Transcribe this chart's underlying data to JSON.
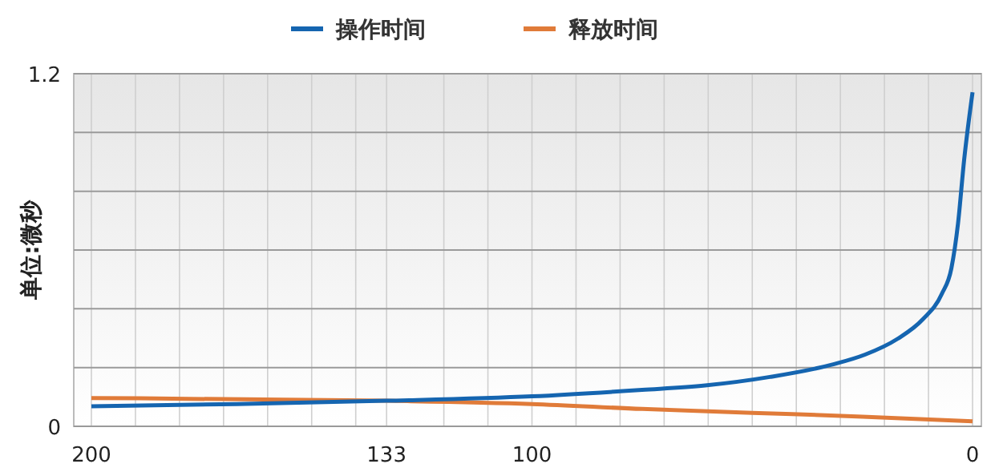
{
  "chart_data": {
    "type": "line",
    "ylabel": "单位:微秒",
    "legend": "top",
    "grid": true,
    "marker": "none",
    "line_style": "solid",
    "xlim": [
      204,
      -2
    ],
    "ylim": [
      0,
      1.2
    ],
    "xticks": [
      200,
      {
        "value": 190,
        "label": null
      },
      {
        "value": 180,
        "label": null
      },
      {
        "value": 170,
        "label": null
      },
      {
        "value": 160,
        "label": null
      },
      {
        "value": 150,
        "label": null
      },
      {
        "value": 140,
        "label": null
      },
      133,
      {
        "value": 120,
        "label": null
      },
      {
        "value": 110,
        "label": null
      },
      100,
      {
        "value": 90,
        "label": null
      },
      {
        "value": 80,
        "label": null
      },
      {
        "value": 70,
        "label": null
      },
      {
        "value": 60,
        "label": null
      },
      {
        "value": 50,
        "label": null
      },
      {
        "value": 40,
        "label": null
      },
      {
        "value": 30,
        "label": null
      },
      {
        "value": 20,
        "label": null
      },
      {
        "value": 10,
        "label": null
      },
      0
    ],
    "yticks": [
      0,
      {
        "value": 0.2,
        "label": null
      },
      {
        "value": 0.4,
        "label": null
      },
      {
        "value": 0.6,
        "label": null
      },
      {
        "value": 0.8,
        "label": null
      },
      {
        "value": 1.0,
        "label": null
      },
      1.2
    ],
    "series": [
      {
        "name": "操作时间",
        "color": "#1565b0",
        "x": [
          200,
          167,
          133,
          100,
          75,
          60.7,
          46,
          31.6,
          24.4,
          17,
          11.3,
          7,
          4.8,
          3.3,
          1.9,
          0
        ],
        "values": [
          0.068,
          0.076,
          0.087,
          0.102,
          0.124,
          0.139,
          0.168,
          0.211,
          0.244,
          0.298,
          0.364,
          0.45,
          0.538,
          0.69,
          0.908,
          1.137
        ]
      },
      {
        "name": "释放时间",
        "color": "#e07b39",
        "x": [
          200,
          133,
          100,
          75,
          50,
          25,
          0
        ],
        "values": [
          0.096,
          0.087,
          0.076,
          0.059,
          0.046,
          0.033,
          0.017
        ]
      }
    ]
  }
}
